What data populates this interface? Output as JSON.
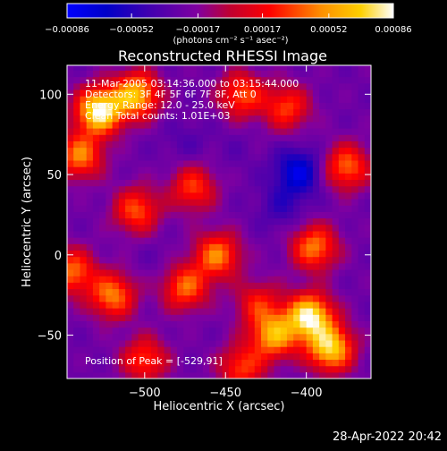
{
  "chart_data": {
    "type": "heatmap",
    "title": "Reconstructed RHESSI Image",
    "xlabel": "Heliocentric X (arcsec)",
    "ylabel": "Heliocentric Y (arcsec)",
    "xlim": [
      -548,
      -360
    ],
    "ylim": [
      -77,
      118
    ],
    "x_ticks": [
      -500,
      -450,
      -400
    ],
    "y_ticks": [
      -50,
      0,
      50,
      100
    ],
    "colorbar": {
      "ticks": [
        "-0.00086",
        "-0.00052",
        "-0.00017",
        "0.00017",
        "0.00052",
        "0.00086"
      ],
      "range": [
        -0.00086,
        0.00086
      ],
      "unit_label": "(photons cm⁻² s⁻¹ asec⁻²)"
    },
    "annotations": [
      "11-Mar-2005 03:14:36.000 to 03:15:44.000",
      "Detectors: 3F 4F 5F 6F 7F 8F, Att 0",
      "Energy Range: 12.0 - 25.0 keV",
      "Clean     Total counts: 1.01E+03"
    ],
    "peak_label": "Position of Peak = [-529,91]",
    "sources": [
      {
        "x": -528,
        "y": 90,
        "value": 0.00086
      },
      {
        "x": -505,
        "y": 100,
        "value": 0.00062
      },
      {
        "x": -540,
        "y": 62,
        "value": 0.00045
      },
      {
        "x": -398,
        "y": -38,
        "value": 0.0008
      },
      {
        "x": -385,
        "y": -58,
        "value": 0.0007
      },
      {
        "x": -420,
        "y": -50,
        "value": 0.00055
      },
      {
        "x": -395,
        "y": 5,
        "value": 0.00045
      },
      {
        "x": -520,
        "y": -25,
        "value": 0.00045
      },
      {
        "x": -475,
        "y": -20,
        "value": 0.0004
      },
      {
        "x": -545,
        "y": -10,
        "value": 0.0004
      },
      {
        "x": -455,
        "y": 0,
        "value": 0.00045
      },
      {
        "x": -505,
        "y": 28,
        "value": 0.00035
      },
      {
        "x": -470,
        "y": 42,
        "value": 0.0003
      },
      {
        "x": -440,
        "y": 100,
        "value": 0.00035
      },
      {
        "x": -375,
        "y": 55,
        "value": 0.0004
      },
      {
        "x": -412,
        "y": 92,
        "value": 0.0003
      },
      {
        "x": -500,
        "y": -65,
        "value": 0.0003
      },
      {
        "x": -440,
        "y": -70,
        "value": 0.0003
      },
      {
        "x": -430,
        "y": -30,
        "value": 0.0002
      },
      {
        "x": -405,
        "y": 52,
        "value": -0.00075
      },
      {
        "x": -415,
        "y": 30,
        "value": -0.00045
      },
      {
        "x": -475,
        "y": 70,
        "value": -0.00035
      },
      {
        "x": -490,
        "y": -5,
        "value": -0.0003
      },
      {
        "x": -445,
        "y": 65,
        "value": -0.0003
      },
      {
        "x": -530,
        "y": 20,
        "value": -0.00025
      }
    ]
  },
  "footer": {
    "timestamp": "28-Apr-2022 20:42"
  }
}
